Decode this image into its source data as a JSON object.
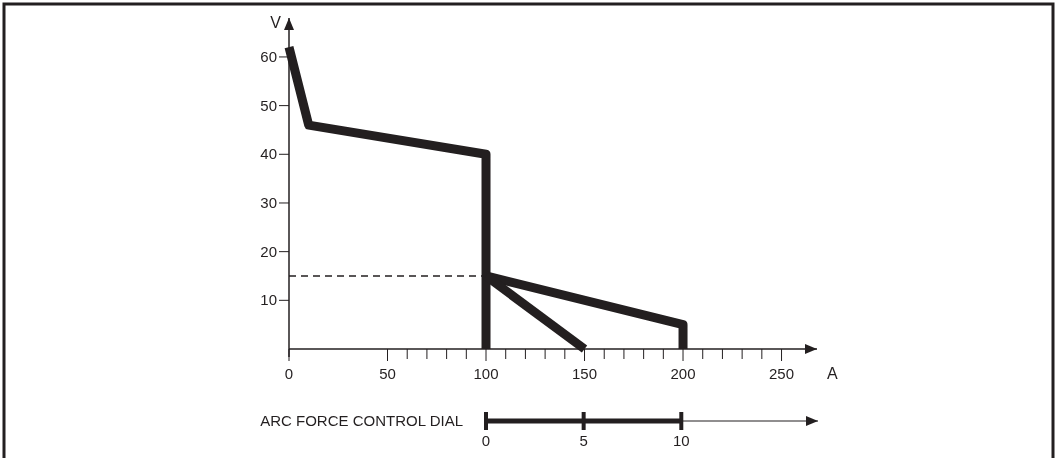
{
  "chart_data": {
    "type": "line",
    "xlabel": "A",
    "ylabel": "V",
    "x2label": "ARC FORCE CONTROL DIAL",
    "xlim": [
      0,
      268
    ],
    "ylim": [
      0,
      68
    ],
    "x2lim": [
      0,
      17
    ],
    "xticks": [
      0,
      50,
      {
        "value": 60,
        "label": null
      },
      {
        "value": 70,
        "label": null
      },
      {
        "value": 80,
        "label": null
      },
      {
        "value": 90,
        "label": null
      },
      100,
      {
        "value": 110,
        "label": null
      },
      {
        "value": 120,
        "label": null
      },
      {
        "value": 130,
        "label": null
      },
      {
        "value": 140,
        "label": null
      },
      150,
      {
        "value": 160,
        "label": null
      },
      {
        "value": 170,
        "label": null
      },
      {
        "value": 180,
        "label": null
      },
      {
        "value": 190,
        "label": null
      },
      200,
      {
        "value": 210,
        "label": null
      },
      {
        "value": 220,
        "label": null
      },
      {
        "value": 230,
        "label": null
      },
      {
        "value": 240,
        "label": null
      },
      250
    ],
    "yticks": [
      10,
      20,
      30,
      40,
      50,
      60
    ],
    "x2ticks": [
      0,
      5,
      10
    ],
    "series": [
      {
        "color": "#231f20",
        "x": [
          0,
          10,
          100,
          100
        ],
        "values": [
          62,
          46,
          40,
          0
        ]
      },
      {
        "color": "#231f20",
        "x": [
          100,
          200,
          200
        ],
        "values": [
          15,
          5,
          0
        ]
      },
      {
        "color": "#231f20",
        "x": [
          100,
          150
        ],
        "values": [
          15,
          0
        ]
      },
      {
        "color": "#231f20",
        "x": [
          0,
          100
        ],
        "values": [
          15,
          15
        ],
        "line_style": "dashed"
      }
    ]
  }
}
